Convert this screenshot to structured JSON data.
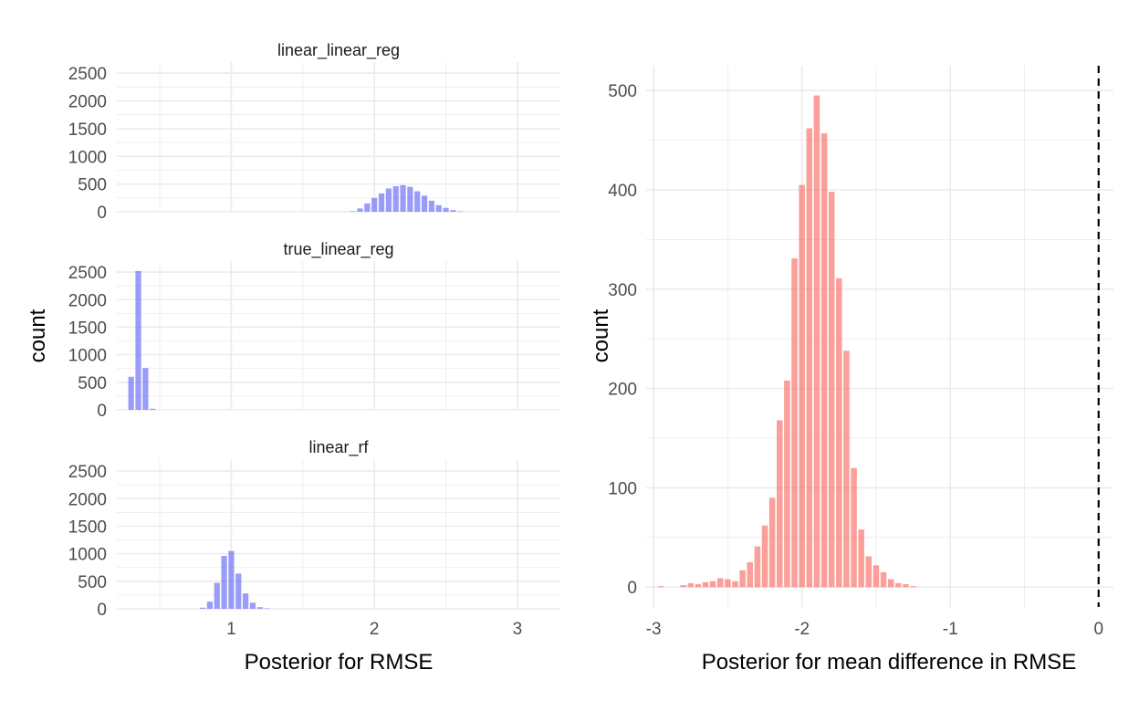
{
  "chart_data": [
    {
      "type": "bar",
      "subtype": "faceted-histogram",
      "xlabel": "Posterior for RMSE",
      "ylabel": "count",
      "xlim": [
        0.2,
        3.3
      ],
      "ylim": [
        0,
        2700
      ],
      "x_ticks": [
        "1",
        "2",
        "3"
      ],
      "y_ticks": [
        "0",
        "500",
        "1000",
        "1500",
        "2000",
        "2500"
      ],
      "bar_color": "#6f72f6",
      "bar_opacity": 0.7,
      "grid": "on",
      "bin_width": 0.05,
      "facets": [
        {
          "title": "linear_linear_reg",
          "bins": [
            {
              "x": 1.85,
              "count": 10
            },
            {
              "x": 1.9,
              "count": 60
            },
            {
              "x": 1.95,
              "count": 150
            },
            {
              "x": 2.0,
              "count": 250
            },
            {
              "x": 2.05,
              "count": 330
            },
            {
              "x": 2.1,
              "count": 420
            },
            {
              "x": 2.15,
              "count": 460
            },
            {
              "x": 2.2,
              "count": 480
            },
            {
              "x": 2.25,
              "count": 450
            },
            {
              "x": 2.3,
              "count": 370
            },
            {
              "x": 2.35,
              "count": 290
            },
            {
              "x": 2.4,
              "count": 200
            },
            {
              "x": 2.45,
              "count": 120
            },
            {
              "x": 2.5,
              "count": 70
            },
            {
              "x": 2.55,
              "count": 30
            },
            {
              "x": 2.6,
              "count": 8
            }
          ]
        },
        {
          "title": "true_linear_reg",
          "bins": [
            {
              "x": 0.3,
              "count": 600
            },
            {
              "x": 0.35,
              "count": 2520
            },
            {
              "x": 0.4,
              "count": 760
            },
            {
              "x": 0.45,
              "count": 20
            }
          ]
        },
        {
          "title": "linear_rf",
          "bins": [
            {
              "x": 0.8,
              "count": 20
            },
            {
              "x": 0.85,
              "count": 130
            },
            {
              "x": 0.9,
              "count": 470
            },
            {
              "x": 0.95,
              "count": 960
            },
            {
              "x": 1.0,
              "count": 1050
            },
            {
              "x": 1.05,
              "count": 640
            },
            {
              "x": 1.1,
              "count": 280
            },
            {
              "x": 1.15,
              "count": 110
            },
            {
              "x": 1.2,
              "count": 30
            },
            {
              "x": 1.25,
              "count": 8
            }
          ]
        }
      ]
    },
    {
      "type": "bar",
      "subtype": "histogram",
      "xlabel": "Posterior for mean difference in RMSE",
      "ylabel": "count",
      "xlim": [
        -3.05,
        0.1
      ],
      "ylim": [
        -20,
        525
      ],
      "x_ticks": [
        "-3",
        "-2",
        "-1",
        "0"
      ],
      "y_ticks": [
        "0",
        "100",
        "200",
        "300",
        "400",
        "500"
      ],
      "bar_color": "#f8766d",
      "bar_opacity": 0.7,
      "grid": "on",
      "bin_width": 0.05,
      "reference_line": {
        "x": 0,
        "style": "dashed"
      },
      "bins": [
        {
          "x": -2.95,
          "count": 1
        },
        {
          "x": -2.8,
          "count": 2
        },
        {
          "x": -2.75,
          "count": 4
        },
        {
          "x": -2.7,
          "count": 3
        },
        {
          "x": -2.65,
          "count": 5
        },
        {
          "x": -2.6,
          "count": 6
        },
        {
          "x": -2.55,
          "count": 9
        },
        {
          "x": -2.5,
          "count": 8
        },
        {
          "x": -2.45,
          "count": 6
        },
        {
          "x": -2.4,
          "count": 17
        },
        {
          "x": -2.35,
          "count": 25
        },
        {
          "x": -2.3,
          "count": 41
        },
        {
          "x": -2.25,
          "count": 62
        },
        {
          "x": -2.2,
          "count": 90
        },
        {
          "x": -2.15,
          "count": 168
        },
        {
          "x": -2.1,
          "count": 208
        },
        {
          "x": -2.05,
          "count": 331
        },
        {
          "x": -2.0,
          "count": 405
        },
        {
          "x": -1.95,
          "count": 462
        },
        {
          "x": -1.9,
          "count": 495
        },
        {
          "x": -1.85,
          "count": 457
        },
        {
          "x": -1.8,
          "count": 398
        },
        {
          "x": -1.75,
          "count": 311
        },
        {
          "x": -1.7,
          "count": 238
        },
        {
          "x": -1.65,
          "count": 120
        },
        {
          "x": -1.6,
          "count": 58
        },
        {
          "x": -1.55,
          "count": 31
        },
        {
          "x": -1.5,
          "count": 22
        },
        {
          "x": -1.45,
          "count": 15
        },
        {
          "x": -1.4,
          "count": 8
        },
        {
          "x": -1.35,
          "count": 4
        },
        {
          "x": -1.3,
          "count": 3
        },
        {
          "x": -1.25,
          "count": 1
        }
      ]
    }
  ]
}
